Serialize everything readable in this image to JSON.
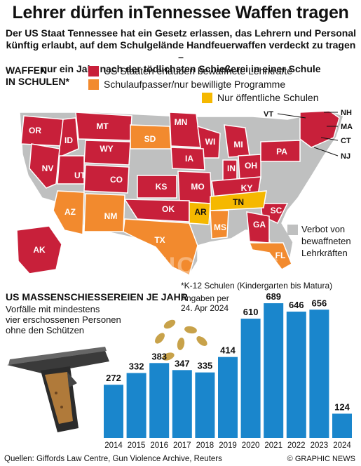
{
  "header": {
    "title": "Lehrer dürfen inTennessee Waffen tragen",
    "subtitle_lines": [
      "Der US Staat Tennessee hat ein Gesetz erlassen, das Lehrern und Personal",
      "künftig erlaubt, auf dem Schulgelände Handfeuerwaffen verdeckt zu tragen –",
      "nur ein Jahr nach der tödlichsten Schießerei in einer Schule"
    ]
  },
  "map": {
    "title_lines": [
      "WAFFEN",
      "IN SCHULEN*"
    ],
    "legend": [
      {
        "label": "US Staaten erlauben bewaffnete Lehrkräfte",
        "color": "#c8203a"
      },
      {
        "label": "Schulaufpasser/nur bewilligte Programme",
        "color": "#f28a2e"
      },
      {
        "label": "Nur öffentliche Schulen",
        "color": "#f5b800"
      }
    ],
    "ban_label_lines": [
      "Verbot von",
      "bewaffneten",
      "Lehrkräften"
    ],
    "ban_color": "#bfc0c0",
    "colors": {
      "red": "#c8203a",
      "orange": "#f28a2e",
      "yellow": "#f5b800",
      "gray": "#bfc0c0"
    },
    "state_labels": [
      "OR",
      "MT",
      "ID",
      "WY",
      "NV",
      "UT",
      "CO",
      "SD",
      "MN",
      "IA",
      "MI",
      "WI",
      "KS",
      "MO",
      "IN",
      "OH",
      "PA",
      "KY",
      "AR",
      "OK",
      "TN",
      "AZ",
      "NM",
      "SC",
      "GA",
      "TX",
      "MS",
      "FL",
      "AK"
    ],
    "side_labels": [
      "VT",
      "NH",
      "MA",
      "CT",
      "NJ"
    ],
    "watermark": "GRAPHIC NEWS"
  },
  "footnote": "*K-12 Schulen (Kindergarten bis Matura)",
  "as_of_lines": [
    "Angaben per",
    "24. Apr 2024"
  ],
  "chart_title": "US MASSENSCHIESSEREIEN JE JAHR",
  "chart_subtitle_lines": [
    "Vorfälle mit mindestens",
    "vier erschossenen Personen",
    "ohne den Schützen"
  ],
  "chart_data": {
    "type": "bar",
    "title": "US MASSENSCHIESSEREIEN JE JAHR",
    "categories": [
      "2014",
      "2015",
      "2016",
      "2017",
      "2018",
      "2019",
      "2020",
      "2021",
      "2022",
      "2023",
      "2024"
    ],
    "values": [
      272,
      332,
      383,
      347,
      335,
      414,
      610,
      689,
      646,
      656,
      124
    ],
    "bar_color": "#1a86cc",
    "grid": false,
    "data_labels": true
  },
  "sources": "Quellen: Giffords Law Centre, Gun Violence Archive, Reuters",
  "credit": "© GRAPHIC NEWS"
}
